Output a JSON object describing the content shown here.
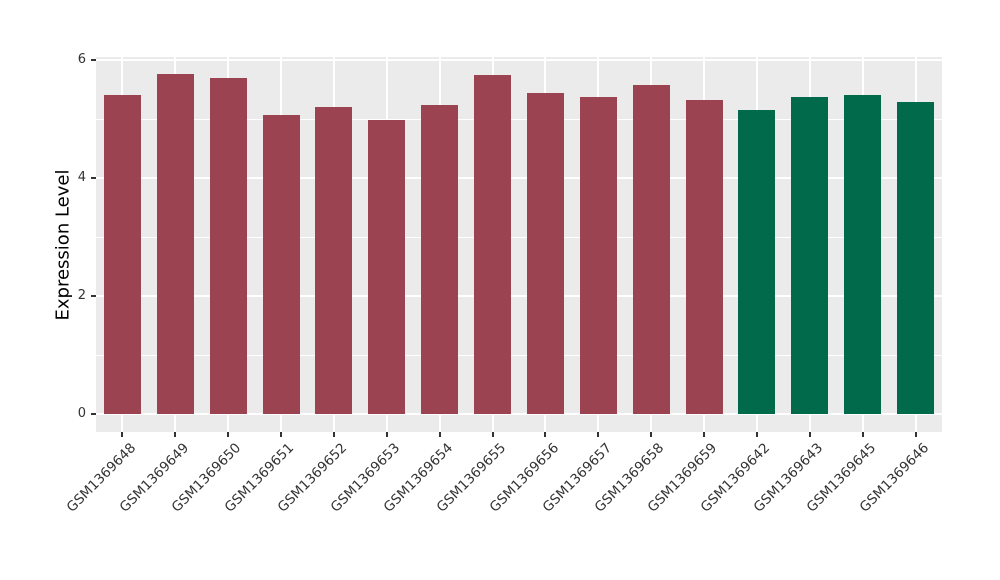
{
  "chart_data": {
    "type": "bar",
    "title": "",
    "xlabel": "",
    "ylabel": "Expression Level",
    "categories": [
      "GSM1369648",
      "GSM1369649",
      "GSM1369650",
      "GSM1369651",
      "GSM1369652",
      "GSM1369653",
      "GSM1369654",
      "GSM1369655",
      "GSM1369656",
      "GSM1369657",
      "GSM1369658",
      "GSM1369659",
      "GSM1369642",
      "GSM1369643",
      "GSM1369645",
      "GSM1369646"
    ],
    "values": [
      5.41,
      5.77,
      5.69,
      5.06,
      5.21,
      4.98,
      5.23,
      5.74,
      5.44,
      5.37,
      5.58,
      5.33,
      5.15,
      5.37,
      5.4,
      5.29
    ],
    "bar_colors": [
      "#9C4351",
      "#9C4351",
      "#9C4351",
      "#9C4351",
      "#9C4351",
      "#9C4351",
      "#9C4351",
      "#9C4351",
      "#9C4351",
      "#9C4351",
      "#9C4351",
      "#9C4351",
      "#016A4A",
      "#016A4A",
      "#016A4A",
      "#016A4A"
    ],
    "y_ticks": [
      0,
      2,
      4,
      6
    ],
    "y_tick_labels": [
      "0",
      "2",
      "4",
      "6"
    ],
    "y_minor_ticks": [
      1,
      3,
      5
    ],
    "ylim": [
      -0.31,
      6.05
    ],
    "grid": true,
    "legend": false,
    "panel_bg": "#EBEBEB",
    "grid_color": "#FFFFFF",
    "tick_color": "#333333"
  }
}
